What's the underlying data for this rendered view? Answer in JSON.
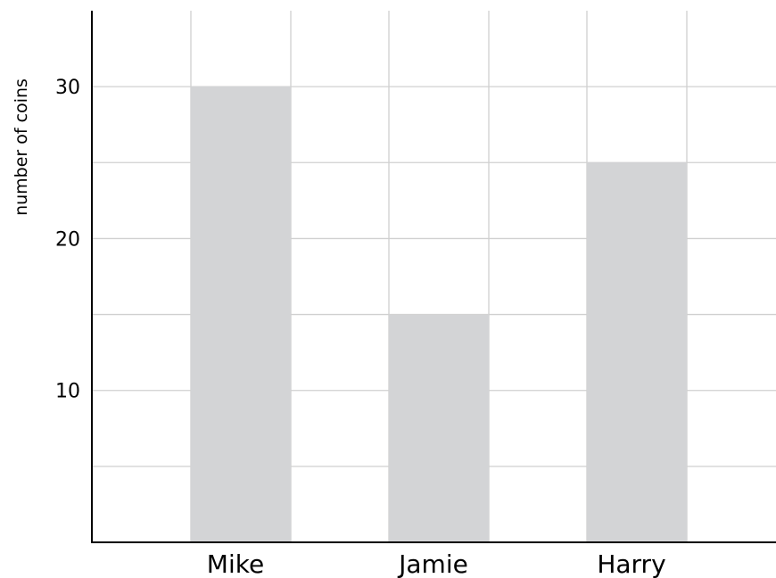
{
  "chart_data": {
    "type": "bar",
    "categories": [
      "Mike",
      "Jamie",
      "Harry"
    ],
    "values": [
      30,
      15,
      25
    ],
    "title": "",
    "xlabel": "",
    "ylabel": "number of coins",
    "ylim": [
      0,
      35
    ],
    "y_ticks": [
      10,
      20,
      30
    ],
    "grid": true,
    "bar_color": "#d3d4d6",
    "grid_color": "#d0d0d0",
    "axis_color": "#000000"
  }
}
